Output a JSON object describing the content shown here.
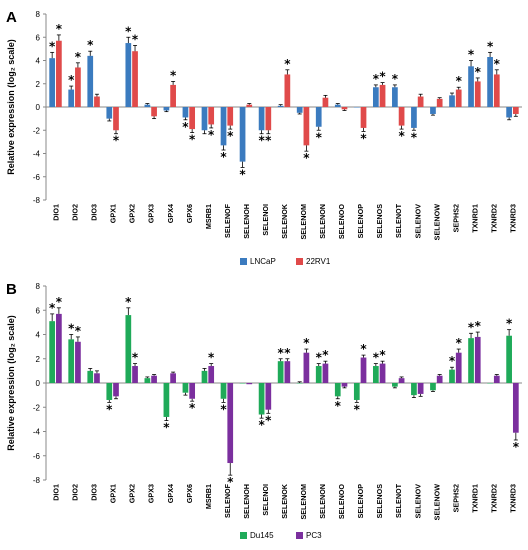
{
  "chart_data": [
    {
      "panel": "A",
      "type": "bar",
      "ylabel": "Relative expression (log₂ scale)",
      "ylim": [
        -8,
        8
      ],
      "yticks": [
        -8,
        -6,
        -4,
        -2,
        0,
        2,
        4,
        6,
        8
      ],
      "legend_position": "bottom-center",
      "categories": [
        "DIO1",
        "DIO2",
        "DIO3",
        "GPX1",
        "GPX2",
        "GPX3",
        "GPX4",
        "GPX6",
        "MSRB1",
        "SELENOF",
        "SELENOH",
        "SELENOI",
        "SELENOK",
        "SELENOM",
        "SELENON",
        "SELENOO",
        "SELENOP",
        "SELENOS",
        "SELENOT",
        "SELENOV",
        "SELENOW",
        "SEPHS2",
        "TXNRD1",
        "TXNRD2",
        "TXNRD3"
      ],
      "series": [
        {
          "name": "LNCaP",
          "color": "#3b7bbf",
          "values": [
            4.2,
            1.5,
            4.4,
            -1.0,
            5.5,
            0.2,
            -0.3,
            -0.9,
            -2.0,
            -3.3,
            -4.7,
            -2.0,
            0.1,
            -0.5,
            -1.7,
            0.2,
            0.0,
            1.7,
            1.7,
            -1.8,
            -0.6,
            1.0,
            3.5,
            4.3,
            -0.9
          ],
          "errors": [
            0.5,
            0.3,
            0.4,
            0.2,
            0.5,
            0.1,
            0.1,
            0.2,
            0.3,
            0.4,
            0.5,
            0.3,
            0.1,
            0.1,
            0.3,
            0.1,
            0.0,
            0.2,
            0.2,
            0.2,
            0.1,
            0.2,
            0.5,
            0.4,
            0.2
          ],
          "stars": [
            true,
            true,
            true,
            false,
            true,
            false,
            false,
            true,
            false,
            true,
            true,
            true,
            false,
            false,
            true,
            false,
            false,
            true,
            true,
            true,
            false,
            false,
            true,
            true,
            false
          ]
        },
        {
          "name": "22RV1",
          "color": "#e04a4a",
          "values": [
            5.7,
            3.4,
            0.9,
            -2.0,
            4.8,
            -0.8,
            1.9,
            -1.9,
            -1.5,
            -1.6,
            0.2,
            -2.0,
            2.8,
            -3.3,
            0.8,
            -0.2,
            -1.8,
            1.9,
            -1.6,
            0.9,
            0.7,
            1.5,
            2.2,
            2.8,
            -0.6
          ],
          "errors": [
            0.5,
            0.4,
            0.2,
            0.3,
            0.5,
            0.2,
            0.3,
            0.3,
            0.3,
            0.3,
            0.1,
            0.3,
            0.4,
            0.5,
            0.2,
            0.1,
            0.3,
            0.2,
            0.3,
            0.2,
            0.1,
            0.2,
            0.3,
            0.4,
            0.2
          ],
          "stars": [
            true,
            true,
            false,
            true,
            true,
            false,
            true,
            true,
            true,
            true,
            false,
            true,
            true,
            true,
            false,
            false,
            true,
            true,
            true,
            false,
            false,
            true,
            true,
            true,
            false
          ]
        }
      ]
    },
    {
      "panel": "B",
      "type": "bar",
      "ylabel": "Relative expression (log₂ scale)",
      "ylim": [
        -8,
        8
      ],
      "yticks": [
        -8,
        -6,
        -4,
        -2,
        0,
        2,
        4,
        6,
        8
      ],
      "legend_position": "bottom-center",
      "categories": [
        "DIO1",
        "DIO2",
        "DIO3",
        "GPX1",
        "GPX2",
        "GPX3",
        "GPX4",
        "GPX6",
        "MSRB1",
        "SELENOF",
        "SELENOH",
        "SELENOI",
        "SELENOK",
        "SELENOM",
        "SELENON",
        "SELENOO",
        "SELENOP",
        "SELENOS",
        "SELENOT",
        "SELENOV",
        "SELENOW",
        "SEPHS2",
        "TXNRD1",
        "TXNRD2",
        "TXNRD3"
      ],
      "series": [
        {
          "name": "Du145",
          "color": "#1faa59",
          "values": [
            5.1,
            3.6,
            1.0,
            -1.4,
            5.6,
            0.4,
            -2.8,
            -0.8,
            1.0,
            -1.3,
            0.0,
            -2.6,
            1.8,
            0.0,
            1.4,
            -1.1,
            -1.4,
            1.4,
            -0.3,
            -1.0,
            -0.6,
            1.1,
            3.7,
            0.0,
            3.9
          ],
          "errors": [
            0.6,
            0.4,
            0.2,
            0.2,
            0.6,
            0.1,
            0.3,
            0.2,
            0.2,
            0.3,
            0.0,
            0.3,
            0.2,
            0.1,
            0.2,
            0.2,
            0.2,
            0.2,
            0.1,
            0.2,
            0.1,
            0.2,
            0.4,
            0.0,
            0.5
          ],
          "stars": [
            true,
            true,
            false,
            true,
            true,
            false,
            true,
            false,
            false,
            true,
            false,
            true,
            true,
            false,
            true,
            true,
            true,
            true,
            false,
            false,
            false,
            true,
            true,
            false,
            true
          ]
        },
        {
          "name": "PC3",
          "color": "#7b2f9e",
          "values": [
            5.7,
            3.4,
            0.8,
            -1.1,
            1.4,
            0.6,
            0.8,
            -1.3,
            1.4,
            -6.6,
            -0.1,
            -2.2,
            1.8,
            2.5,
            1.6,
            -0.3,
            2.1,
            1.6,
            0.4,
            -0.9,
            0.6,
            2.5,
            3.8,
            0.6,
            -4.1
          ],
          "errors": [
            0.5,
            0.4,
            0.2,
            0.2,
            0.2,
            0.1,
            0.1,
            0.2,
            0.2,
            1.0,
            0.0,
            0.3,
            0.2,
            0.3,
            0.2,
            0.1,
            0.2,
            0.2,
            0.1,
            0.2,
            0.1,
            0.3,
            0.4,
            0.1,
            0.6
          ],
          "stars": [
            true,
            true,
            false,
            false,
            true,
            false,
            false,
            true,
            true,
            true,
            false,
            true,
            true,
            true,
            true,
            false,
            true,
            true,
            false,
            false,
            false,
            true,
            true,
            false,
            true
          ]
        }
      ]
    }
  ]
}
